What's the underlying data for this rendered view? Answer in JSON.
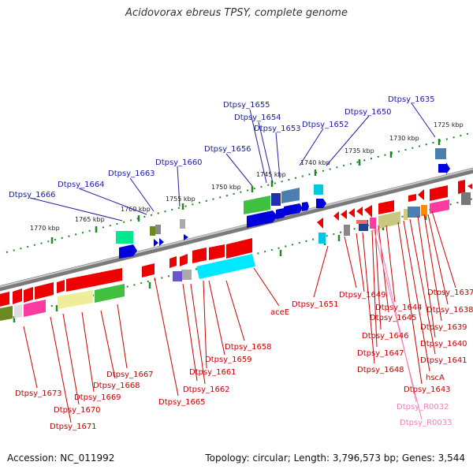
{
  "title": "Acidovorax ebreus TPSY, complete genome",
  "footer": {
    "accession": "Accession: NC_011992",
    "topology": "Topology: circular; Length: 3,796,573 bp; Genes: 3,544"
  },
  "ticks": [
    "1725 kbp",
    "1730 kbp",
    "1735 kbp",
    "1740 kbp",
    "1745 kbp",
    "1750 kbp",
    "1755 kbp",
    "1760 kbp",
    "1765 kbp",
    "1770 kbp"
  ],
  "labels_top": [
    "Dtpsy_1635",
    "Dtpsy_1650",
    "Dtpsy_1652",
    "Dtpsy_1653",
    "Dtpsy_1654",
    "Dtpsy_1655",
    "Dtpsy_1656",
    "Dtpsy_1660",
    "Dtpsy_1663",
    "Dtpsy_1664",
    "Dtpsy_1666"
  ],
  "labels_bottom": [
    "Dtpsy_1637",
    "Dtpsy_1638",
    "Dtpsy_1639",
    "Dtpsy_1640",
    "Dtpsy_1641",
    "hscA",
    "Dtpsy_1643",
    "Dtpsy_1644",
    "Dtpsy_1645",
    "Dtpsy_1646",
    "Dtpsy_1647",
    "Dtpsy_1648",
    "Dtpsy_1649",
    "Dtpsy_1651",
    "aceE",
    "Dtpsy_1658",
    "Dtpsy_1659",
    "Dtpsy_1661",
    "Dtpsy_1662",
    "Dtpsy_1665",
    "Dtpsy_1667",
    "Dtpsy_1668",
    "Dtpsy_1669",
    "Dtpsy_1670",
    "Dtpsy_1671",
    "Dtpsy_1673"
  ],
  "labels_rna": [
    "Dtpsy_R0032",
    "Dtpsy_R0033"
  ],
  "colors": {
    "blue_label": "#1a1aaa",
    "red_label": "#cc0000",
    "pink_label": "#f080b8",
    "backbone": "#808080",
    "tick": "#228822"
  }
}
